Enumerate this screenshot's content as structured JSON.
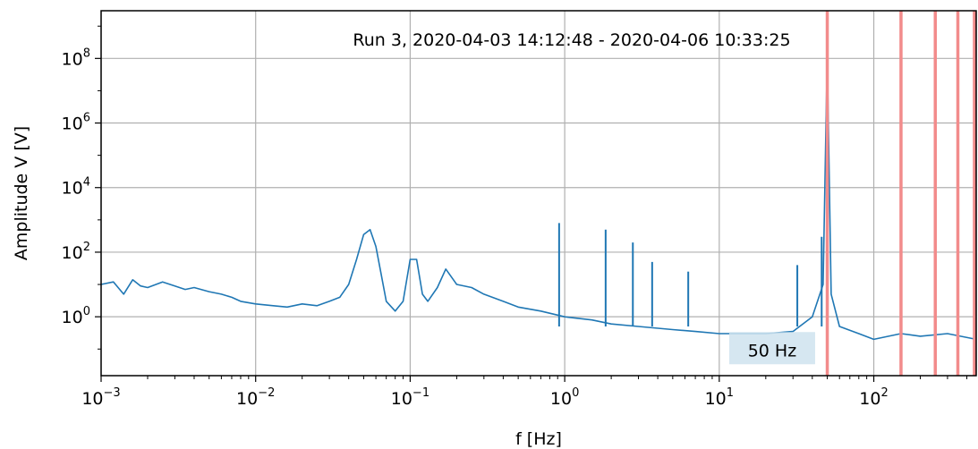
{
  "chart_data": {
    "type": "line",
    "title": "Run 3, 2020-04-03 14:12:48 - 2020-04-06 10:33:25",
    "xlabel": "f [Hz]",
    "ylabel": "Amplitude V [V]",
    "xscale": "log",
    "yscale": "log",
    "xlim": [
      0.001,
      460
    ],
    "ylim": [
      0.015,
      3000000000
    ],
    "grid": true,
    "x_ticks": [
      {
        "base": "10",
        "exp": "−3",
        "value": 0.001
      },
      {
        "base": "10",
        "exp": "−2",
        "value": 0.01
      },
      {
        "base": "10",
        "exp": "−1",
        "value": 0.1
      },
      {
        "base": "10",
        "exp": "0",
        "value": 1
      },
      {
        "base": "10",
        "exp": "1",
        "value": 10
      },
      {
        "base": "10",
        "exp": "2",
        "value": 100
      }
    ],
    "y_ticks": [
      {
        "base": "10",
        "exp": "0",
        "value": 1
      },
      {
        "base": "10",
        "exp": "2",
        "value": 100
      },
      {
        "base": "10",
        "exp": "4",
        "value": 10000
      },
      {
        "base": "10",
        "exp": "6",
        "value": 1000000
      },
      {
        "base": "10",
        "exp": "8",
        "value": 100000000
      }
    ],
    "series": [
      {
        "color": "#1f77b4",
        "points": [
          [
            0.001,
            10
          ],
          [
            0.0012,
            12
          ],
          [
            0.0014,
            5
          ],
          [
            0.0016,
            14
          ],
          [
            0.0018,
            9
          ],
          [
            0.002,
            8
          ],
          [
            0.0025,
            12
          ],
          [
            0.003,
            9
          ],
          [
            0.0035,
            7
          ],
          [
            0.004,
            8
          ],
          [
            0.005,
            6
          ],
          [
            0.006,
            5
          ],
          [
            0.007,
            4
          ],
          [
            0.008,
            3
          ],
          [
            0.01,
            2.5
          ],
          [
            0.013,
            2.2
          ],
          [
            0.016,
            2
          ],
          [
            0.02,
            2.5
          ],
          [
            0.025,
            2.2
          ],
          [
            0.03,
            3
          ],
          [
            0.035,
            4
          ],
          [
            0.04,
            10
          ],
          [
            0.045,
            60
          ],
          [
            0.05,
            350
          ],
          [
            0.055,
            500
          ],
          [
            0.06,
            150
          ],
          [
            0.065,
            20
          ],
          [
            0.07,
            3
          ],
          [
            0.08,
            1.5
          ],
          [
            0.09,
            3
          ],
          [
            0.1,
            60
          ],
          [
            0.11,
            60
          ],
          [
            0.12,
            5
          ],
          [
            0.13,
            3
          ],
          [
            0.15,
            8
          ],
          [
            0.17,
            30
          ],
          [
            0.2,
            10
          ],
          [
            0.25,
            8
          ],
          [
            0.3,
            5
          ],
          [
            0.4,
            3
          ],
          [
            0.5,
            2
          ],
          [
            0.7,
            1.5
          ],
          [
            1,
            1
          ],
          [
            1.5,
            0.8
          ],
          [
            2,
            0.6
          ],
          [
            3,
            0.5
          ],
          [
            5,
            0.4
          ],
          [
            7,
            0.35
          ],
          [
            10,
            0.3
          ],
          [
            20,
            0.3
          ],
          [
            30,
            0.35
          ],
          [
            40,
            1
          ],
          [
            47,
            10
          ],
          [
            50,
            130000000
          ],
          [
            53,
            5
          ],
          [
            60,
            0.5
          ],
          [
            80,
            0.3
          ],
          [
            100,
            0.2
          ],
          [
            150,
            0.3
          ],
          [
            200,
            0.25
          ],
          [
            300,
            0.3
          ],
          [
            460,
            0.2
          ]
        ]
      }
    ],
    "spikes": [
      {
        "x": 0.92,
        "y": 800
      },
      {
        "x": 1.84,
        "y": 500
      },
      {
        "x": 2.76,
        "y": 200
      },
      {
        "x": 3.68,
        "y": 50
      },
      {
        "x": 6.3,
        "y": 25
      },
      {
        "x": 32,
        "y": 40
      },
      {
        "x": 46,
        "y": 300
      },
      {
        "x": 50,
        "y": 130000000
      },
      {
        "x": 150,
        "y": 10000
      },
      {
        "x": 250,
        "y": 50000
      },
      {
        "x": 350,
        "y": 30000
      }
    ],
    "red_lines": [
      50,
      150,
      250,
      350,
      450
    ],
    "red_color": "#f28b8b",
    "annotation": {
      "text": "50 Hz",
      "x": 22,
      "y": 0.06
    }
  }
}
